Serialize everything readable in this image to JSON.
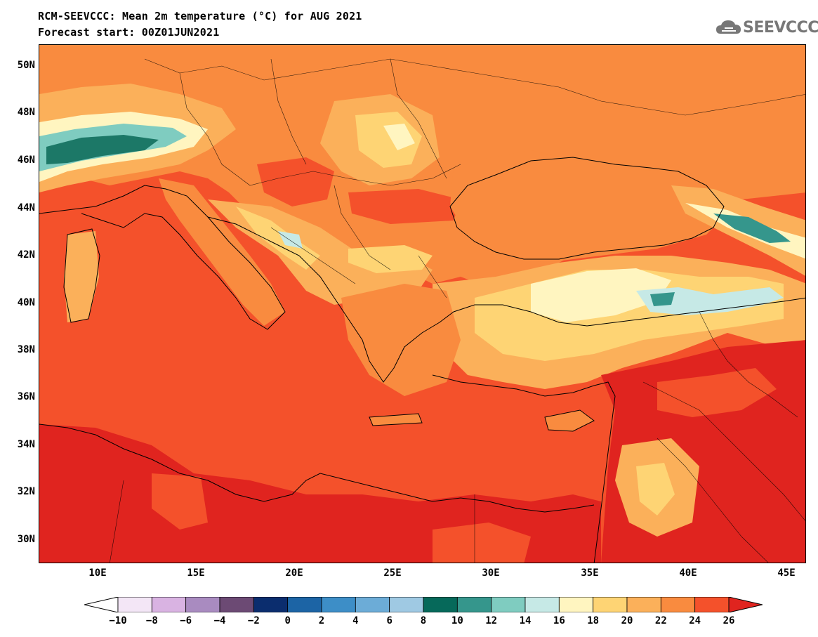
{
  "header": {
    "title": "RCM-SEEVCCC: Mean 2m temperature (°C) for AUG 2021",
    "subtitle": "Forecast start: 00Z01JUN2021",
    "logo_text": "SEEVCCC"
  },
  "map": {
    "projection": "lat-lon",
    "lon_range": [
      7,
      46
    ],
    "lat_range": [
      29,
      51
    ],
    "lat_ticks": [
      "50N",
      "48N",
      "46N",
      "44N",
      "42N",
      "40N",
      "38N",
      "36N",
      "34N",
      "32N",
      "30N"
    ],
    "lon_ticks": [
      "10E",
      "15E",
      "20E",
      "25E",
      "30E",
      "35E",
      "40E",
      "45E"
    ],
    "sea_color": "#f4512b",
    "field_colors": {
      "hot": "#e0241f",
      "warm_24_26": "#f4512b",
      "22_24": "#f98b3f",
      "20_22": "#fbb05a",
      "18_20": "#fed474",
      "16_18": "#fff5c0",
      "14_16": "#c6e9e6",
      "12_14": "#7fccc0",
      "10_12": "#35968c",
      "8_10": "#0a6857"
    }
  },
  "colorbar": {
    "labels": [
      "−10",
      "−8",
      "−6",
      "−4",
      "−2",
      "0",
      "2",
      "4",
      "6",
      "8",
      "10",
      "12",
      "14",
      "16",
      "18",
      "20",
      "22",
      "24",
      "26"
    ],
    "under_color": "#ffffff",
    "over_color": "#e0241f",
    "colors": [
      "#f3e6f6",
      "#d9b3e2",
      "#a98bc0",
      "#6c4a74",
      "#0b2d6e",
      "#1c64a5",
      "#3d8ec7",
      "#6cacd7",
      "#9fc9e3",
      "#06695a",
      "#35968c",
      "#7fccc0",
      "#c6e9e6",
      "#fff5c0",
      "#fed474",
      "#fbb05a",
      "#f98b3f",
      "#f4512b"
    ]
  }
}
